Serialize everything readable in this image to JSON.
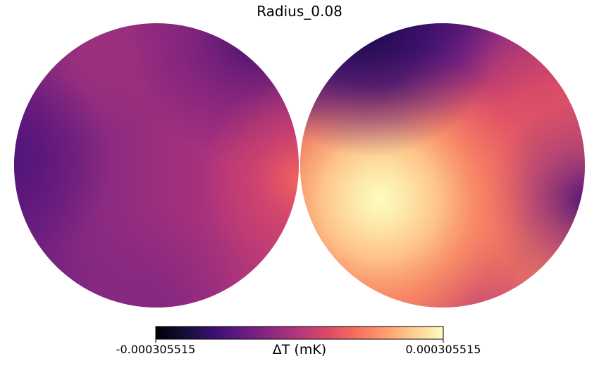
{
  "chart_data": {
    "type": "heatmap",
    "projection": "orthographic",
    "title": "Radius_0.08",
    "hemispheres": 2,
    "colormap": "magma",
    "colorbar": {
      "label": "ΔT (mK)",
      "min": -0.000305515,
      "max": 0.000305515,
      "min_label": "-0.000305515",
      "max_label": "0.000305515",
      "placement": "bottom"
    },
    "features": [
      {
        "name": "hot-spot",
        "hemisphere": "right",
        "value": 0.000305515
      },
      {
        "name": "cold-region",
        "hemisphere": "right",
        "value": -0.00013
      }
    ]
  }
}
